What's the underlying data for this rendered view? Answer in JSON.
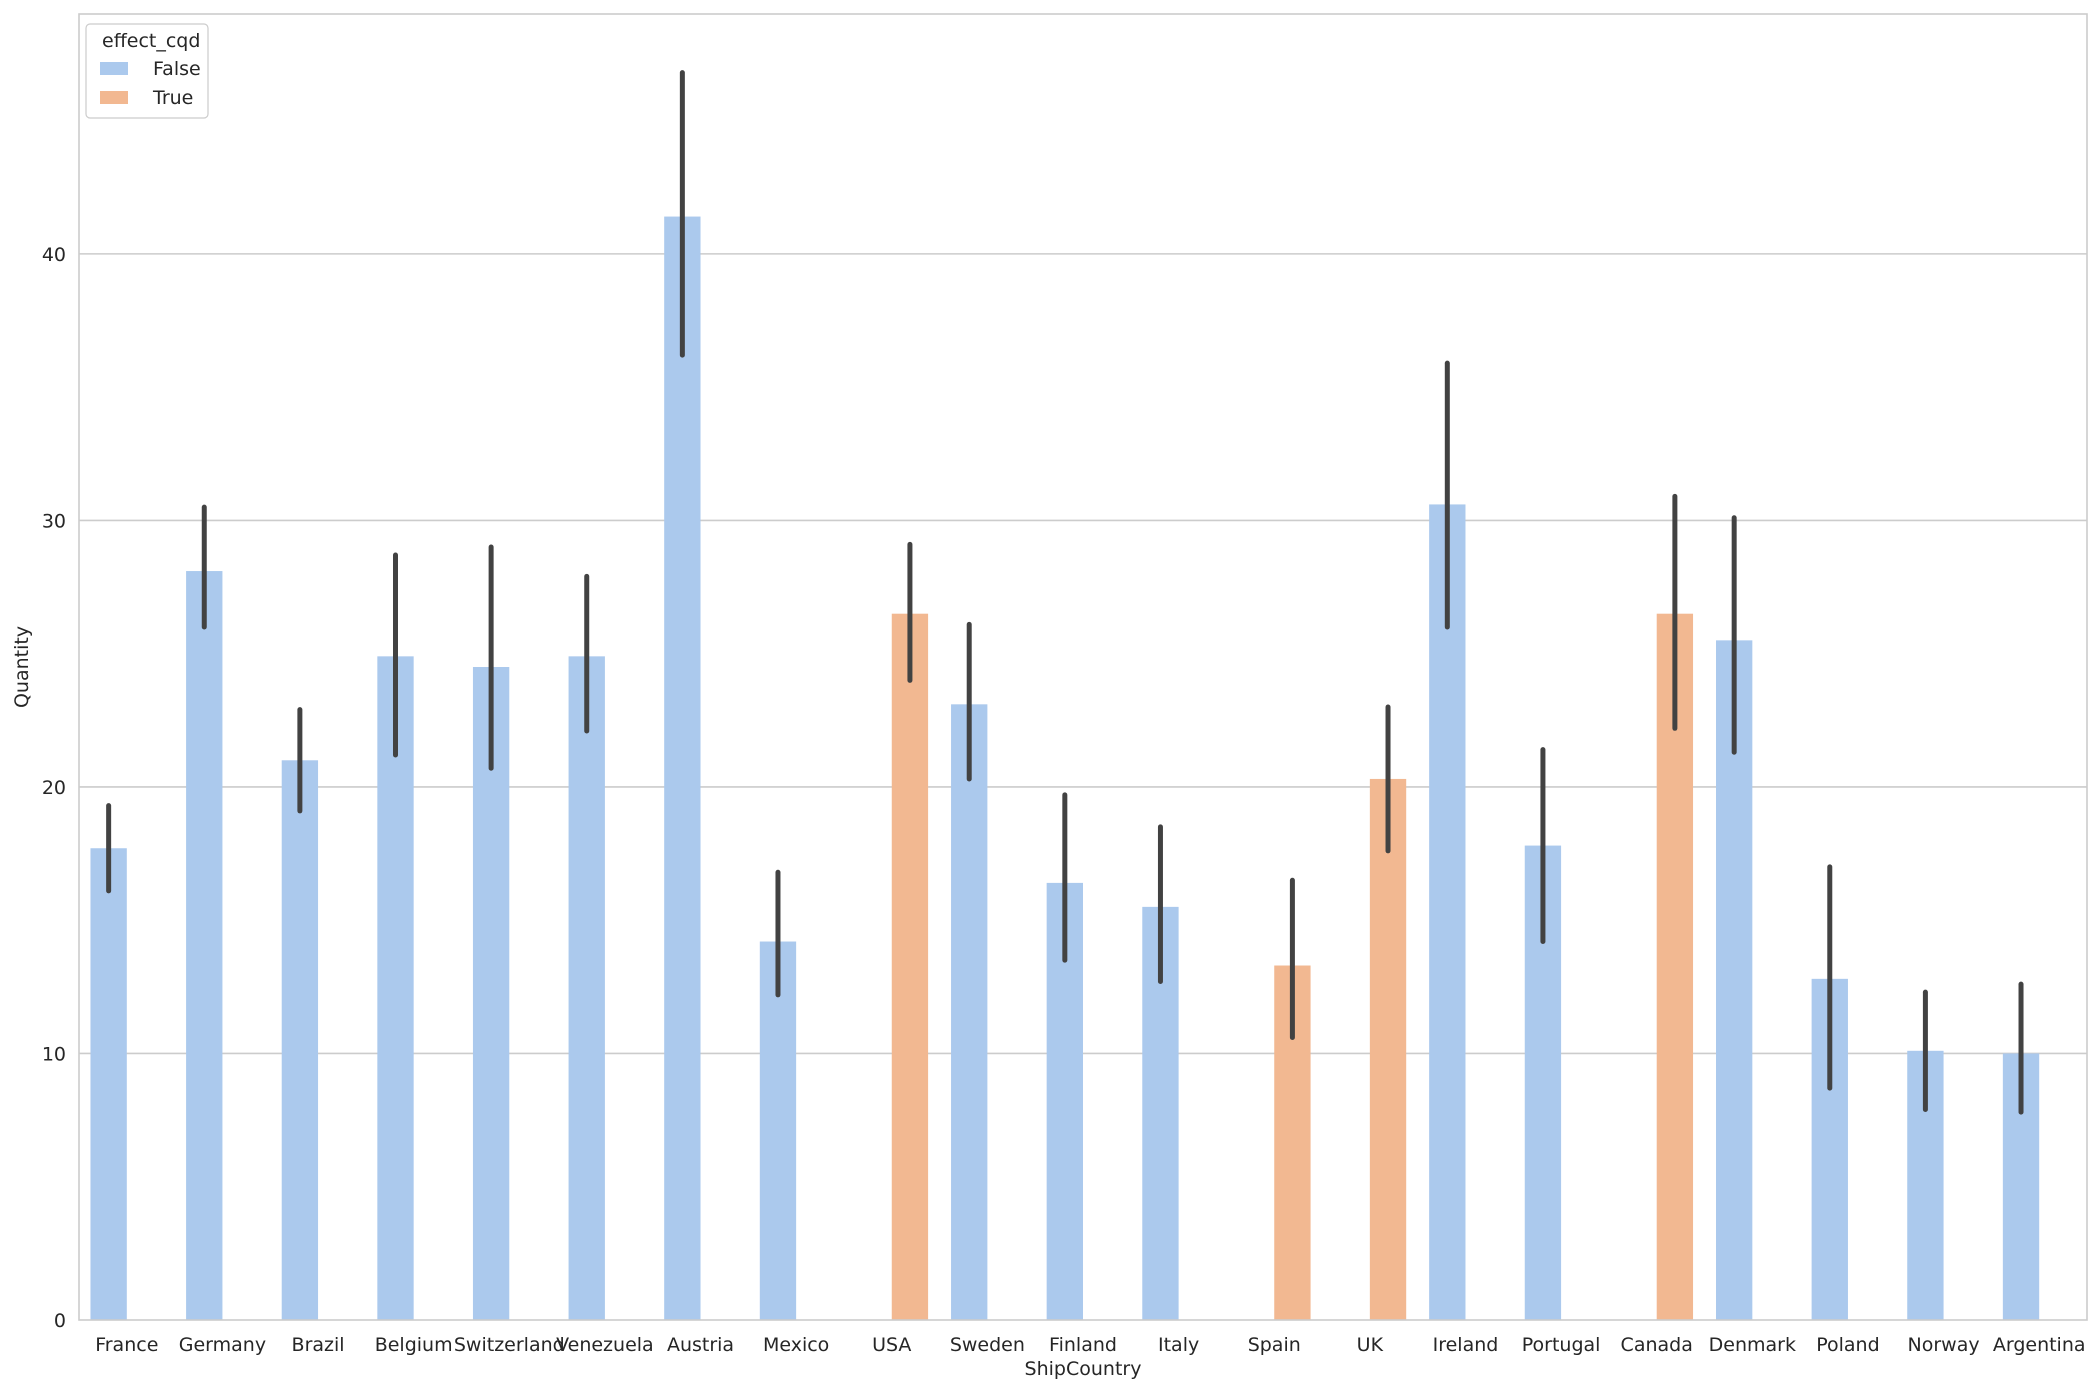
{
  "chart_data": {
    "type": "bar",
    "xlabel": "ShipCountry",
    "ylabel": "Quantity",
    "ylim": [
      0,
      49
    ],
    "yticks": [
      0,
      10,
      20,
      30,
      40
    ],
    "grid": "horizontal",
    "legend": {
      "title": "effect_cqd",
      "placement": "top-left",
      "entries": [
        {
          "label": "False",
          "color": "#abc9ed"
        },
        {
          "label": "True",
          "color": "#f2b891"
        }
      ]
    },
    "categories": [
      "France",
      "Germany",
      "Brazil",
      "Belgium",
      "Switzerland",
      "Venezuela",
      "Austria",
      "Mexico",
      "USA",
      "Sweden",
      "Finland",
      "Italy",
      "Spain",
      "UK",
      "Ireland",
      "Portugal",
      "Canada",
      "Denmark",
      "Poland",
      "Norway",
      "Argentina"
    ],
    "bars": [
      {
        "category": "France",
        "hue": "False",
        "value": 17.7,
        "ci": [
          16.1,
          19.3
        ]
      },
      {
        "category": "Germany",
        "hue": "False",
        "value": 28.1,
        "ci": [
          26.0,
          30.5
        ]
      },
      {
        "category": "Brazil",
        "hue": "False",
        "value": 21.0,
        "ci": [
          19.1,
          22.9
        ]
      },
      {
        "category": "Belgium",
        "hue": "False",
        "value": 24.9,
        "ci": [
          21.2,
          28.7
        ]
      },
      {
        "category": "Switzerland",
        "hue": "False",
        "value": 24.5,
        "ci": [
          20.7,
          29.0
        ]
      },
      {
        "category": "Venezuela",
        "hue": "False",
        "value": 24.9,
        "ci": [
          22.1,
          27.9
        ]
      },
      {
        "category": "Austria",
        "hue": "False",
        "value": 41.4,
        "ci": [
          36.2,
          46.8
        ]
      },
      {
        "category": "Mexico",
        "hue": "False",
        "value": 14.2,
        "ci": [
          12.2,
          16.8
        ]
      },
      {
        "category": "USA",
        "hue": "True",
        "value": 26.5,
        "ci": [
          24.0,
          29.1
        ]
      },
      {
        "category": "Sweden",
        "hue": "False",
        "value": 23.1,
        "ci": [
          20.3,
          26.1
        ]
      },
      {
        "category": "Finland",
        "hue": "False",
        "value": 16.4,
        "ci": [
          13.5,
          19.7
        ]
      },
      {
        "category": "Italy",
        "hue": "False",
        "value": 15.5,
        "ci": [
          12.7,
          18.5
        ]
      },
      {
        "category": "Spain",
        "hue": "True",
        "value": 13.3,
        "ci": [
          10.6,
          16.5
        ]
      },
      {
        "category": "UK",
        "hue": "True",
        "value": 20.3,
        "ci": [
          17.6,
          23.0
        ]
      },
      {
        "category": "Ireland",
        "hue": "False",
        "value": 30.6,
        "ci": [
          26.0,
          35.9
        ]
      },
      {
        "category": "Portugal",
        "hue": "False",
        "value": 17.8,
        "ci": [
          14.2,
          21.4
        ]
      },
      {
        "category": "Canada",
        "hue": "True",
        "value": 26.5,
        "ci": [
          22.2,
          30.9
        ]
      },
      {
        "category": "Denmark",
        "hue": "False",
        "value": 25.5,
        "ci": [
          21.3,
          30.1
        ]
      },
      {
        "category": "Poland",
        "hue": "False",
        "value": 12.8,
        "ci": [
          8.7,
          17.0
        ]
      },
      {
        "category": "Norway",
        "hue": "False",
        "value": 10.1,
        "ci": [
          7.9,
          12.3
        ]
      },
      {
        "category": "Argentina",
        "hue": "False",
        "value": 10.0,
        "ci": [
          7.8,
          12.6
        ]
      }
    ]
  }
}
